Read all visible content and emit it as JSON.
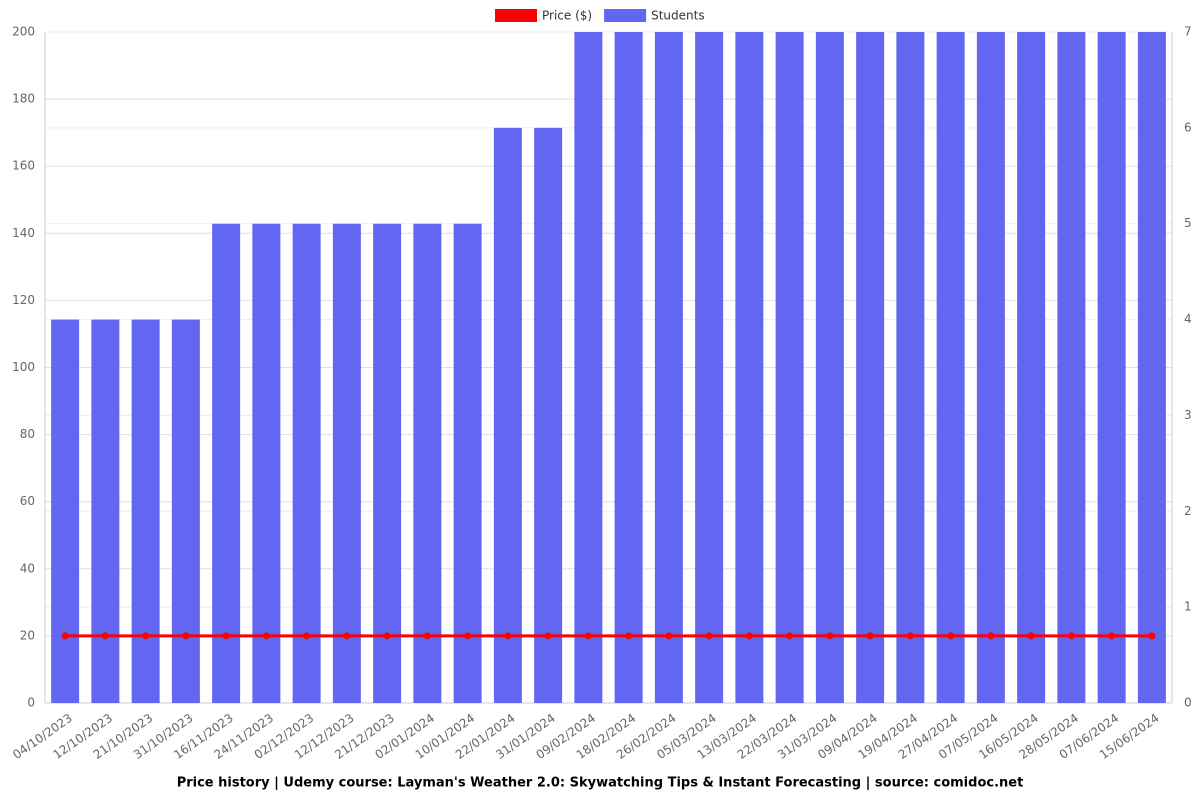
{
  "chart_data": {
    "type": "bar-line",
    "title": "Price history | Udemy course: Layman's Weather 2.0: Skywatching Tips & Instant Forecasting | source: comidoc.net",
    "categories": [
      "04/10/2023",
      "12/10/2023",
      "21/10/2023",
      "31/10/2023",
      "16/11/2023",
      "24/11/2023",
      "02/12/2023",
      "12/12/2023",
      "21/12/2023",
      "02/01/2024",
      "10/01/2024",
      "22/01/2024",
      "31/01/2024",
      "09/02/2024",
      "18/02/2024",
      "26/02/2024",
      "05/03/2024",
      "13/03/2024",
      "22/03/2024",
      "31/03/2024",
      "09/04/2024",
      "19/04/2024",
      "27/04/2024",
      "07/05/2024",
      "16/05/2024",
      "28/05/2024",
      "07/06/2024",
      "15/06/2024"
    ],
    "series": [
      {
        "name": "Price ($)",
        "color": "#ff0000",
        "type": "line",
        "axis": "y",
        "values": [
          20,
          20,
          20,
          20,
          20,
          20,
          20,
          20,
          20,
          20,
          20,
          20,
          20,
          20,
          20,
          20,
          20,
          20,
          20,
          20,
          20,
          20,
          20,
          20,
          20,
          20,
          20,
          20
        ]
      },
      {
        "name": "Students",
        "color": "#6366f1",
        "type": "bar",
        "axis": "y2",
        "values": [
          4,
          4,
          4,
          4,
          5,
          5,
          5,
          5,
          5,
          5,
          5,
          6,
          6,
          7,
          7,
          7,
          7,
          7,
          7,
          7,
          7,
          7,
          7,
          7,
          7,
          7,
          7,
          7
        ]
      }
    ],
    "ylim": [
      0,
      200
    ],
    "yticks": [
      0,
      20,
      40,
      60,
      80,
      100,
      120,
      140,
      160,
      180,
      200
    ],
    "y2lim": [
      0,
      7
    ],
    "y2ticks": [
      0,
      1,
      2,
      3,
      4,
      5,
      6,
      7
    ],
    "grid": true
  }
}
